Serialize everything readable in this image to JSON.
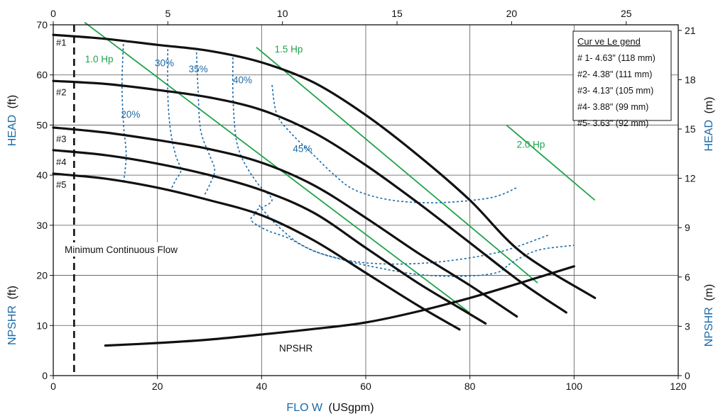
{
  "chart_data": {
    "type": "line",
    "x_title_prefix": "FLO W",
    "x_title_unit": "(USgpm)",
    "xlim": [
      0,
      120
    ],
    "x_ticks": [
      0,
      20,
      40,
      60,
      80,
      100,
      120
    ],
    "top_axis": {
      "lim": [
        0,
        27.27
      ],
      "ticks": [
        0,
        5,
        10,
        15,
        20,
        25
      ]
    },
    "ylim": [
      0,
      70
    ],
    "y_ticks": [
      0,
      10,
      20,
      30,
      40,
      50,
      60,
      70
    ],
    "right_axis": {
      "lim": [
        0,
        21.34
      ],
      "ticks": [
        0,
        3,
        6,
        9,
        12,
        15,
        18,
        21
      ]
    },
    "y_titles": {
      "head_ft": {
        "label": "HEAD",
        "unit": "(ft)"
      },
      "npshr_ft": {
        "label": "NPSHR",
        "unit": "(ft)"
      },
      "head_m": {
        "label": "HEAD",
        "unit": "(m)"
      },
      "npshr_m": {
        "label": "NPSHR",
        "unit": "(m)"
      }
    },
    "grid": true,
    "colors": {
      "curve": "#111111",
      "hp": "#1fa34a",
      "eff": "#1a6aa8",
      "axis_title": "#1a6aa8",
      "grid": "#555555"
    },
    "legend": {
      "position": "top-right",
      "title": "Cur ve Le gend",
      "entries": [
        "# 1- 4.63\" (118 mm)",
        "#2- 4.38\" (111 mm)",
        "#3- 4.13\" (105 mm)",
        "#4- 3.88\" (99 mm)",
        "#5- 3.63\" (92 mm)"
      ]
    },
    "head_curves": [
      {
        "label": "#1",
        "points": [
          [
            0,
            68
          ],
          [
            10,
            67.2
          ],
          [
            20,
            66
          ],
          [
            30,
            64.8
          ],
          [
            40,
            62.5
          ],
          [
            50,
            58.5
          ],
          [
            60,
            52
          ],
          [
            70,
            44
          ],
          [
            80,
            35
          ],
          [
            90,
            24.5
          ],
          [
            104,
            15.5
          ]
        ]
      },
      {
        "label": "#2",
        "points": [
          [
            0,
            58.8
          ],
          [
            10,
            58.2
          ],
          [
            20,
            57
          ],
          [
            30,
            55.5
          ],
          [
            40,
            53
          ],
          [
            50,
            48.5
          ],
          [
            60,
            42
          ],
          [
            70,
            34.5
          ],
          [
            80,
            26.5
          ],
          [
            90,
            18.5
          ],
          [
            98.5,
            12.6
          ]
        ]
      },
      {
        "label": "#3",
        "points": [
          [
            0,
            49.5
          ],
          [
            10,
            48.5
          ],
          [
            20,
            47
          ],
          [
            30,
            45.2
          ],
          [
            40,
            42.5
          ],
          [
            50,
            38
          ],
          [
            60,
            31.5
          ],
          [
            70,
            24.5
          ],
          [
            80,
            18
          ],
          [
            89,
            11.8
          ]
        ]
      },
      {
        "label": "#4",
        "points": [
          [
            0,
            45
          ],
          [
            10,
            44
          ],
          [
            20,
            42.3
          ],
          [
            30,
            40
          ],
          [
            40,
            37
          ],
          [
            50,
            32.5
          ],
          [
            60,
            25.5
          ],
          [
            70,
            18.5
          ],
          [
            78,
            13.5
          ],
          [
            83,
            10.4
          ]
        ]
      },
      {
        "label": "#5",
        "points": [
          [
            0,
            40.3
          ],
          [
            10,
            39.3
          ],
          [
            20,
            37.5
          ],
          [
            30,
            35
          ],
          [
            40,
            32
          ],
          [
            50,
            27
          ],
          [
            60,
            20.5
          ],
          [
            70,
            14
          ],
          [
            78,
            9.2
          ]
        ]
      }
    ],
    "npshr": {
      "label": "NPSHR",
      "points": [
        [
          10,
          6
        ],
        [
          20,
          6.5
        ],
        [
          30,
          7.2
        ],
        [
          40,
          8.2
        ],
        [
          50,
          9.3
        ],
        [
          60,
          10.6
        ],
        [
          70,
          12.8
        ],
        [
          80,
          15.5
        ],
        [
          90,
          18.6
        ],
        [
          100,
          21.8
        ]
      ]
    },
    "hp_lines": [
      {
        "label": "1.0 Hp",
        "points": [
          [
            6,
            70.5
          ],
          [
            80,
            12.5
          ]
        ]
      },
      {
        "label": "1.5 Hp",
        "points": [
          [
            39,
            65.5
          ],
          [
            93,
            18.5
          ]
        ]
      },
      {
        "label": "2.0 Hp",
        "points": [
          [
            87,
            50
          ],
          [
            104,
            35
          ]
        ]
      }
    ],
    "efficiency_curves": [
      {
        "label": "20%",
        "points": [
          [
            13.5,
            67
          ],
          [
            13.2,
            58
          ],
          [
            13.5,
            50
          ],
          [
            14,
            44
          ],
          [
            13.5,
            38.5
          ]
        ]
      },
      {
        "label": "30%",
        "points": [
          [
            22,
            66
          ],
          [
            22,
            56
          ],
          [
            22.5,
            49
          ],
          [
            23.5,
            44
          ],
          [
            24.5,
            41
          ],
          [
            23.5,
            39
          ],
          [
            22.5,
            37
          ]
        ]
      },
      {
        "label": "35%",
        "points": [
          [
            27.5,
            64.5
          ],
          [
            27.8,
            57
          ],
          [
            28.3,
            49
          ],
          [
            30,
            44
          ],
          [
            31,
            41
          ],
          [
            30,
            38
          ],
          [
            29,
            36
          ]
        ]
      },
      {
        "label": "40%",
        "points": [
          [
            34.5,
            63.5
          ],
          [
            34.5,
            56
          ],
          [
            35,
            48
          ],
          [
            36,
            44
          ],
          [
            37.5,
            41
          ],
          [
            39.5,
            38
          ],
          [
            42,
            35
          ],
          [
            39,
            33
          ],
          [
            39,
            32.5
          ],
          [
            38,
            31
          ],
          [
            41,
            29
          ],
          [
            45,
            27.5
          ],
          [
            51,
            24.5
          ],
          [
            60,
            22.5
          ],
          [
            72,
            22.5
          ],
          [
            85,
            24.5
          ],
          [
            95,
            28
          ]
        ]
      },
      {
        "label": "45%",
        "points": [
          [
            42,
            58
          ],
          [
            43,
            52
          ],
          [
            46,
            48
          ],
          [
            50,
            44
          ],
          [
            54,
            40
          ],
          [
            58,
            37
          ],
          [
            65,
            35
          ],
          [
            74,
            34.5
          ],
          [
            84,
            35.5
          ],
          [
            89,
            37.5
          ]
        ]
      },
      {
        "label": "",
        "points": [
          [
            39.5,
            34
          ],
          [
            42,
            31
          ],
          [
            44,
            29
          ],
          [
            47,
            26.5
          ],
          [
            51,
            24.5
          ],
          [
            56,
            23
          ],
          [
            62,
            21.6
          ],
          [
            70,
            20.2
          ],
          [
            78,
            19.8
          ],
          [
            85,
            20.5
          ],
          [
            88,
            22.5
          ],
          [
            93,
            25
          ],
          [
            100,
            26
          ]
        ]
      }
    ],
    "text_labels": [
      {
        "key": "min_flow",
        "text": "Minimum Continuous Flow"
      },
      {
        "key": "npshr_text",
        "text": "NPSHR"
      }
    ],
    "minimum_flow": {
      "x": 4
    }
  }
}
